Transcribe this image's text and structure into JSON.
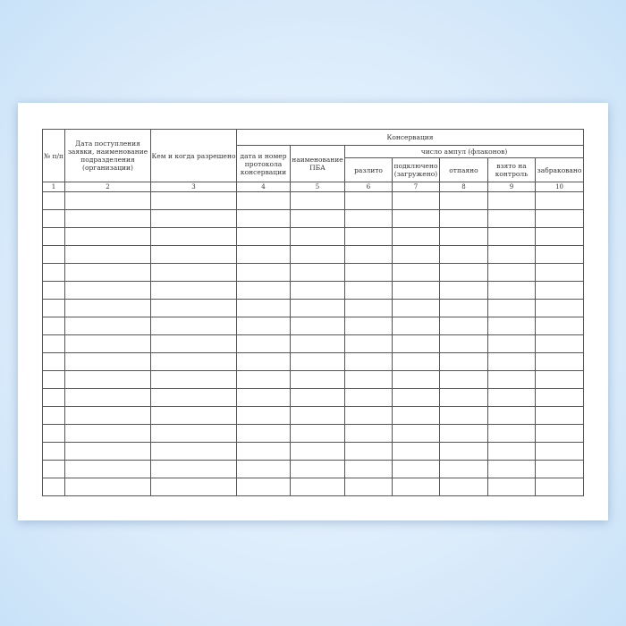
{
  "table": {
    "group_header": "Консервация",
    "subgroup_header": "число ампул (флаконов)",
    "columns": [
      "№ п/п",
      "Дата поступления заявки, наименование подразделения (организации)",
      "Кем и когда разрешено",
      "дата и номер протокола консервации",
      "наименование ПБА",
      "разлито",
      "подключено (загружено)",
      "отпаяно",
      "взято на контроль",
      "забраковано"
    ],
    "column_numbers": [
      "1",
      "2",
      "3",
      "4",
      "5",
      "6",
      "7",
      "8",
      "9",
      "10"
    ],
    "empty_rows": 17
  }
}
